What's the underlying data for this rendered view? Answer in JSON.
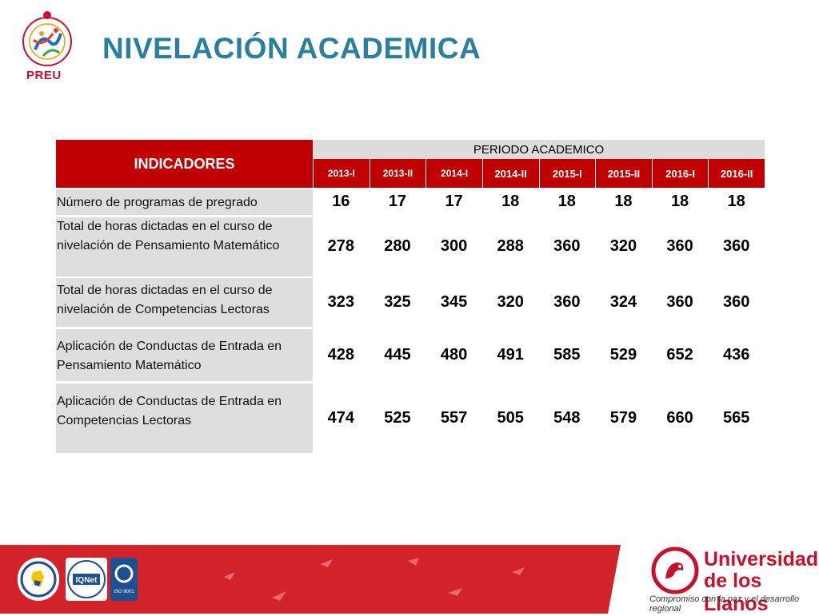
{
  "header": {
    "title": "NIVELACIÓN ACADEMICA",
    "logo_label": "PREU"
  },
  "table": {
    "indicators_header": "INDICADORES",
    "period_header": "PERIODO ACADEMICO",
    "periods": [
      "2013-I",
      "2013-II",
      "2014-I",
      "2014-II",
      "2015-I",
      "2015-II",
      "2016-I",
      "2016-II"
    ],
    "rows": [
      {
        "label": "Número de programas de pregrado",
        "values": [
          "16",
          "17",
          "17",
          "18",
          "18",
          "18",
          "18",
          "18"
        ]
      },
      {
        "label": "Total de horas  dictadas en el curso de nivelación de Pensamiento Matemático",
        "values": [
          "278",
          "280",
          "300",
          "288",
          "360",
          "320",
          "360",
          "360"
        ]
      },
      {
        "label": "Total de horas dictadas en el curso de nivelación de Competencias Lectoras",
        "values": [
          "323",
          "325",
          "345",
          "320",
          "360",
          "324",
          "360",
          "360"
        ]
      },
      {
        "label": "Aplicación de Conductas de Entrada en Pensamiento Matemático",
        "values": [
          "428",
          "445",
          "480",
          "491",
          "585",
          "529",
          "652",
          "436"
        ]
      },
      {
        "label": "Aplicación de Conductas de Entrada en Competencias Lectoras",
        "values": [
          "474",
          "525",
          "557",
          "505",
          "548",
          "579",
          "660",
          "565"
        ]
      }
    ]
  },
  "footer": {
    "university_line1": "Universidad",
    "university_line2": "de los Llanos",
    "motto": "Compromiso con la paz y el desarrollo regional",
    "cert_iqnet": "IQNet",
    "cert_iso": "ISO 9001"
  },
  "colors": {
    "title": "#2b7f9e",
    "header_red": "#c00000",
    "label_gray": "#dedede",
    "footer_red": "#d2232a"
  }
}
